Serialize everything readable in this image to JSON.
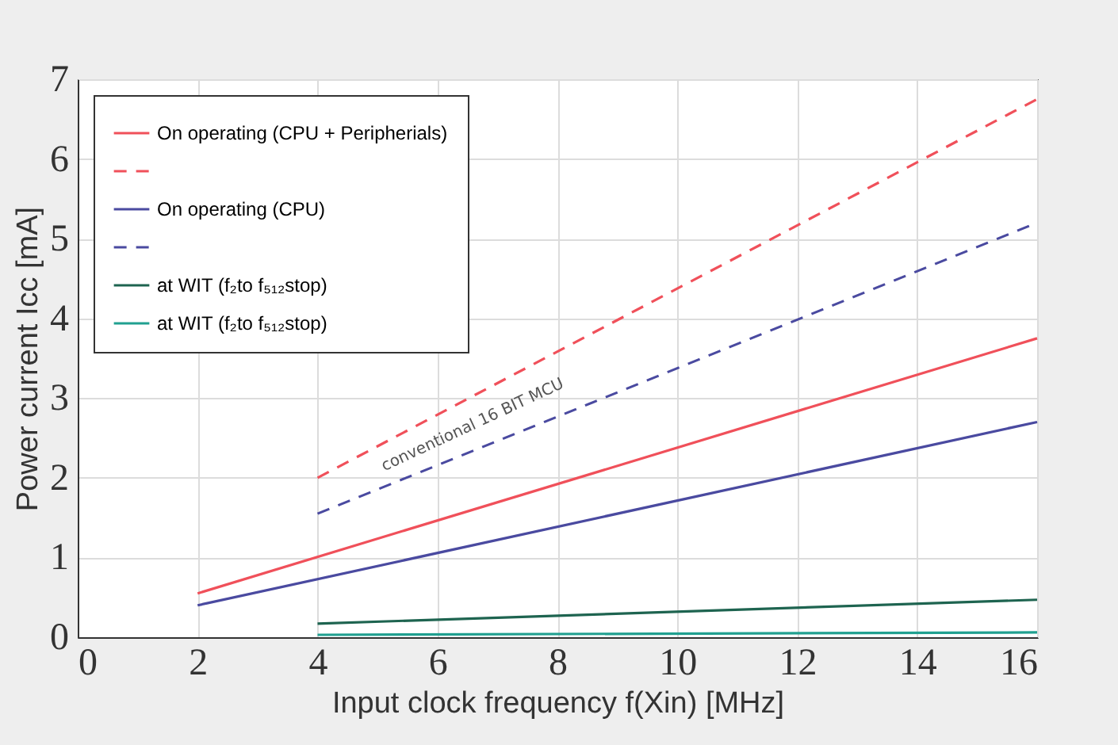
{
  "chart_data": {
    "type": "line",
    "xlabel": "Input clock frequency  f(Xin) [MHz]",
    "ylabel": "Power current Icc [mA]",
    "xlim": [
      0,
      16
    ],
    "xticks": [
      0,
      2,
      4,
      6,
      8,
      10,
      12,
      14,
      16
    ],
    "ylim": [
      0,
      7
    ],
    "yticks": [
      0,
      1,
      2,
      3,
      4,
      5,
      6,
      7
    ],
    "grid": true,
    "legend": "top left",
    "marker": "none",
    "series": [
      {
        "name": "On operating (CPU + Peripherials)",
        "color": "#f0505a",
        "line_style": "solid",
        "x": [
          2,
          16
        ],
        "values": [
          0.55,
          3.75
        ]
      },
      {
        "color": "#f0505a",
        "line_style": "dashed",
        "x": [
          4,
          16
        ],
        "values": [
          2.0,
          6.75
        ]
      },
      {
        "name": "On operating (CPU)",
        "color": "#4a4aa0",
        "line_style": "solid",
        "x": [
          2,
          16
        ],
        "values": [
          0.4,
          2.7
        ]
      },
      {
        "color": "#4a4aa0",
        "line_style": "dashed",
        "x": [
          4,
          16
        ],
        "values": [
          1.55,
          5.2
        ]
      },
      {
        "name": "at WIT (f₂to f₅₁₂stop)",
        "color": "#1e6450",
        "line_style": "solid",
        "x": [
          4,
          16
        ],
        "values": [
          0.17,
          0.47
        ]
      },
      {
        "name": "at WIT (f₂to f₅₁₂stop)",
        "color": "#20a090",
        "line_style": "solid",
        "x": [
          4,
          16
        ],
        "values": [
          0.03,
          0.06
        ]
      }
    ],
    "annotations": [
      "conventional 16 BIT MCU"
    ]
  }
}
